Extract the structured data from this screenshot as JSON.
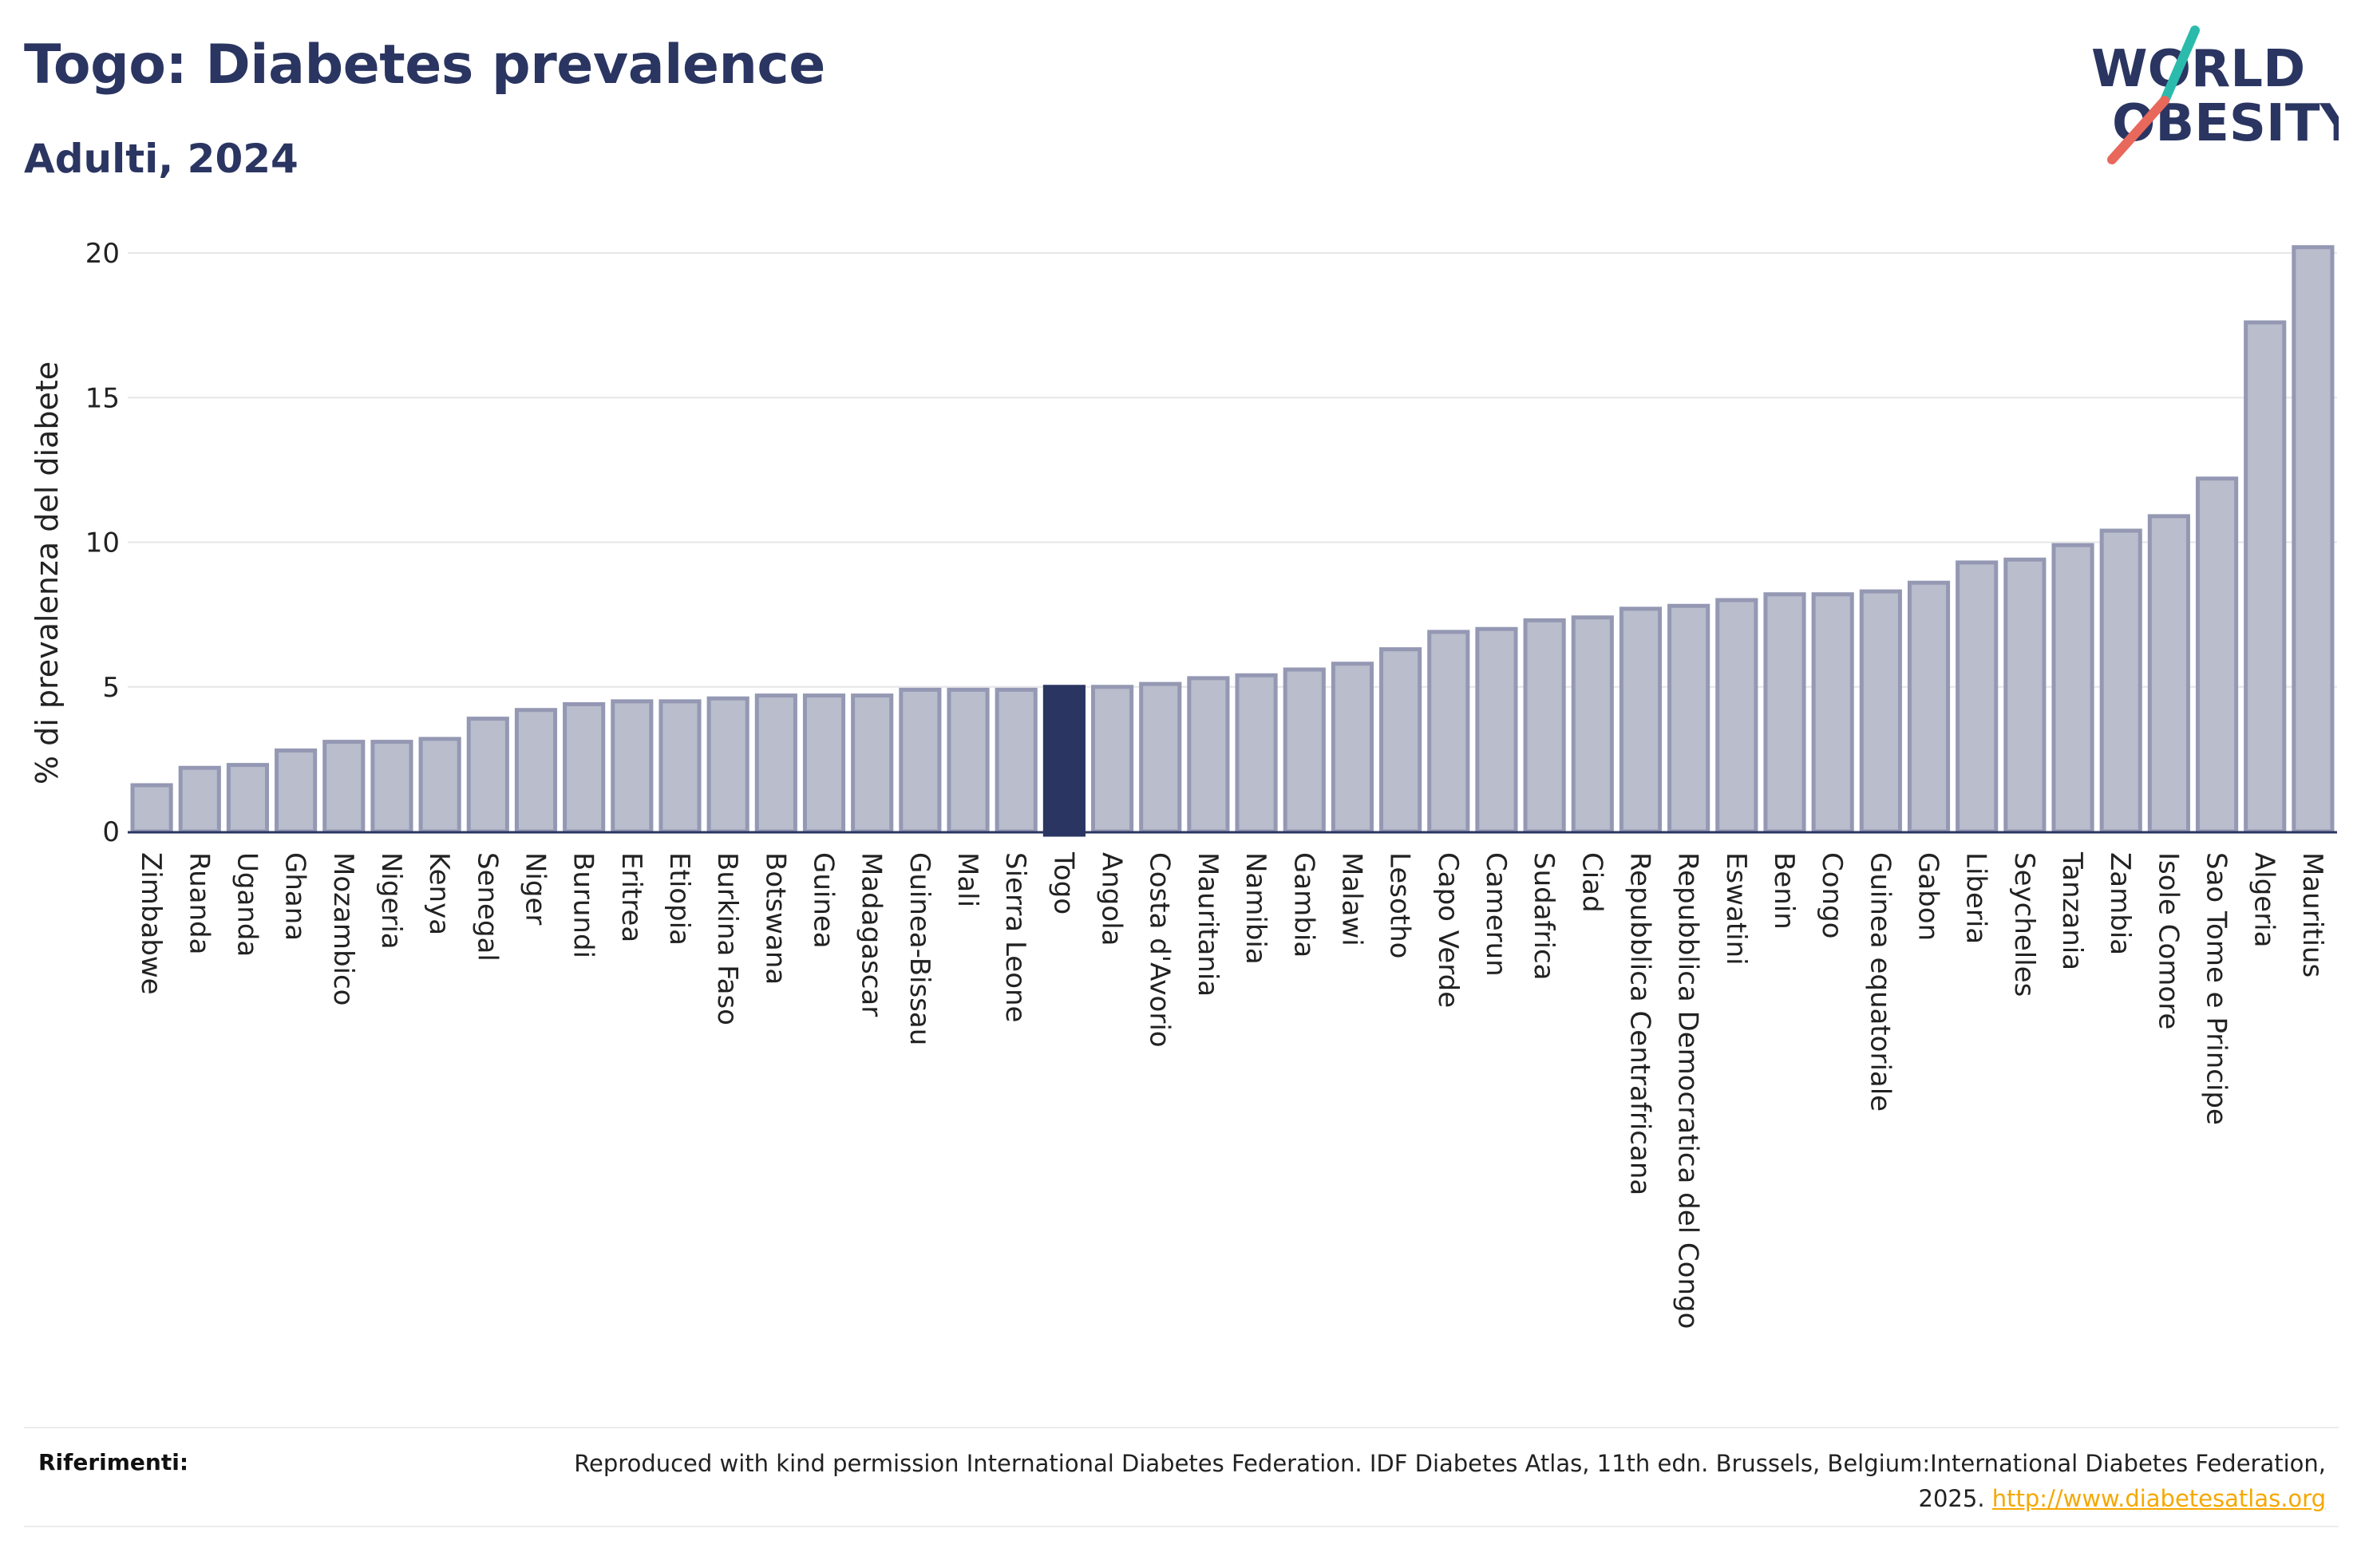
{
  "header": {
    "title": "Togo: Diabetes prevalence",
    "subtitle": "Adulti, 2024"
  },
  "logo": {
    "line1": "WORLD",
    "line2": "OBESITY"
  },
  "colors": {
    "bar": "#b9bdcc",
    "bar_border": "#9498b3",
    "highlight": "#2a3561",
    "grid": "#e6e6e6",
    "axis": "#2a3561",
    "link": "#f5a800",
    "logo_teal": "#2bbbad",
    "logo_red": "#e8685b"
  },
  "chart_data": {
    "type": "bar",
    "ylabel": "% di prevalenza del diabete",
    "xlabel": "",
    "ylim": [
      0,
      21
    ],
    "yticks": [
      0,
      5,
      10,
      15,
      20
    ],
    "grid": true,
    "highlight": "Togo",
    "categories": [
      "Zimbabwe",
      "Ruanda",
      "Uganda",
      "Ghana",
      "Mozambico",
      "Nigeria",
      "Kenya",
      "Senegal",
      "Niger",
      "Burundi",
      "Eritrea",
      "Etiopia",
      "Burkina Faso",
      "Botswana",
      "Guinea",
      "Madagascar",
      "Guinea-Bissau",
      "Mali",
      "Sierra Leone",
      "Togo",
      "Angola",
      "Costa d'Avorio",
      "Mauritania",
      "Namibia",
      "Gambia",
      "Malawi",
      "Lesotho",
      "Capo Verde",
      "Camerun",
      "Sudafrica",
      "Ciad",
      "Repubblica Centrafricana",
      "Repubblica Democratica del Congo",
      "Eswatini",
      "Benin",
      "Congo",
      "Guinea equatoriale",
      "Gabon",
      "Liberia",
      "Seychelles",
      "Tanzania",
      "Zambia",
      "Isole Comore",
      "Sao Tome e Principe",
      "Algeria",
      "Mauritius"
    ],
    "values": [
      1.6,
      2.2,
      2.3,
      2.8,
      3.1,
      3.1,
      3.2,
      3.9,
      4.2,
      4.4,
      4.5,
      4.5,
      4.6,
      4.7,
      4.7,
      4.7,
      4.9,
      4.9,
      4.9,
      5.0,
      5.0,
      5.1,
      5.3,
      5.4,
      5.6,
      5.8,
      6.3,
      6.9,
      7.0,
      7.3,
      7.4,
      7.7,
      7.8,
      8.0,
      8.2,
      8.2,
      8.3,
      8.6,
      9.3,
      9.4,
      9.9,
      10.4,
      10.9,
      12.2,
      17.6,
      20.2
    ]
  },
  "footer": {
    "ref_label": "Riferimenti:",
    "ref_text": "Reproduced with kind permission International Diabetes Federation. IDF Diabetes Atlas, 11th edn. Brussels, Belgium:International Diabetes Federation, 2025. ",
    "ref_link": "http://www.diabetesatlas.org"
  }
}
